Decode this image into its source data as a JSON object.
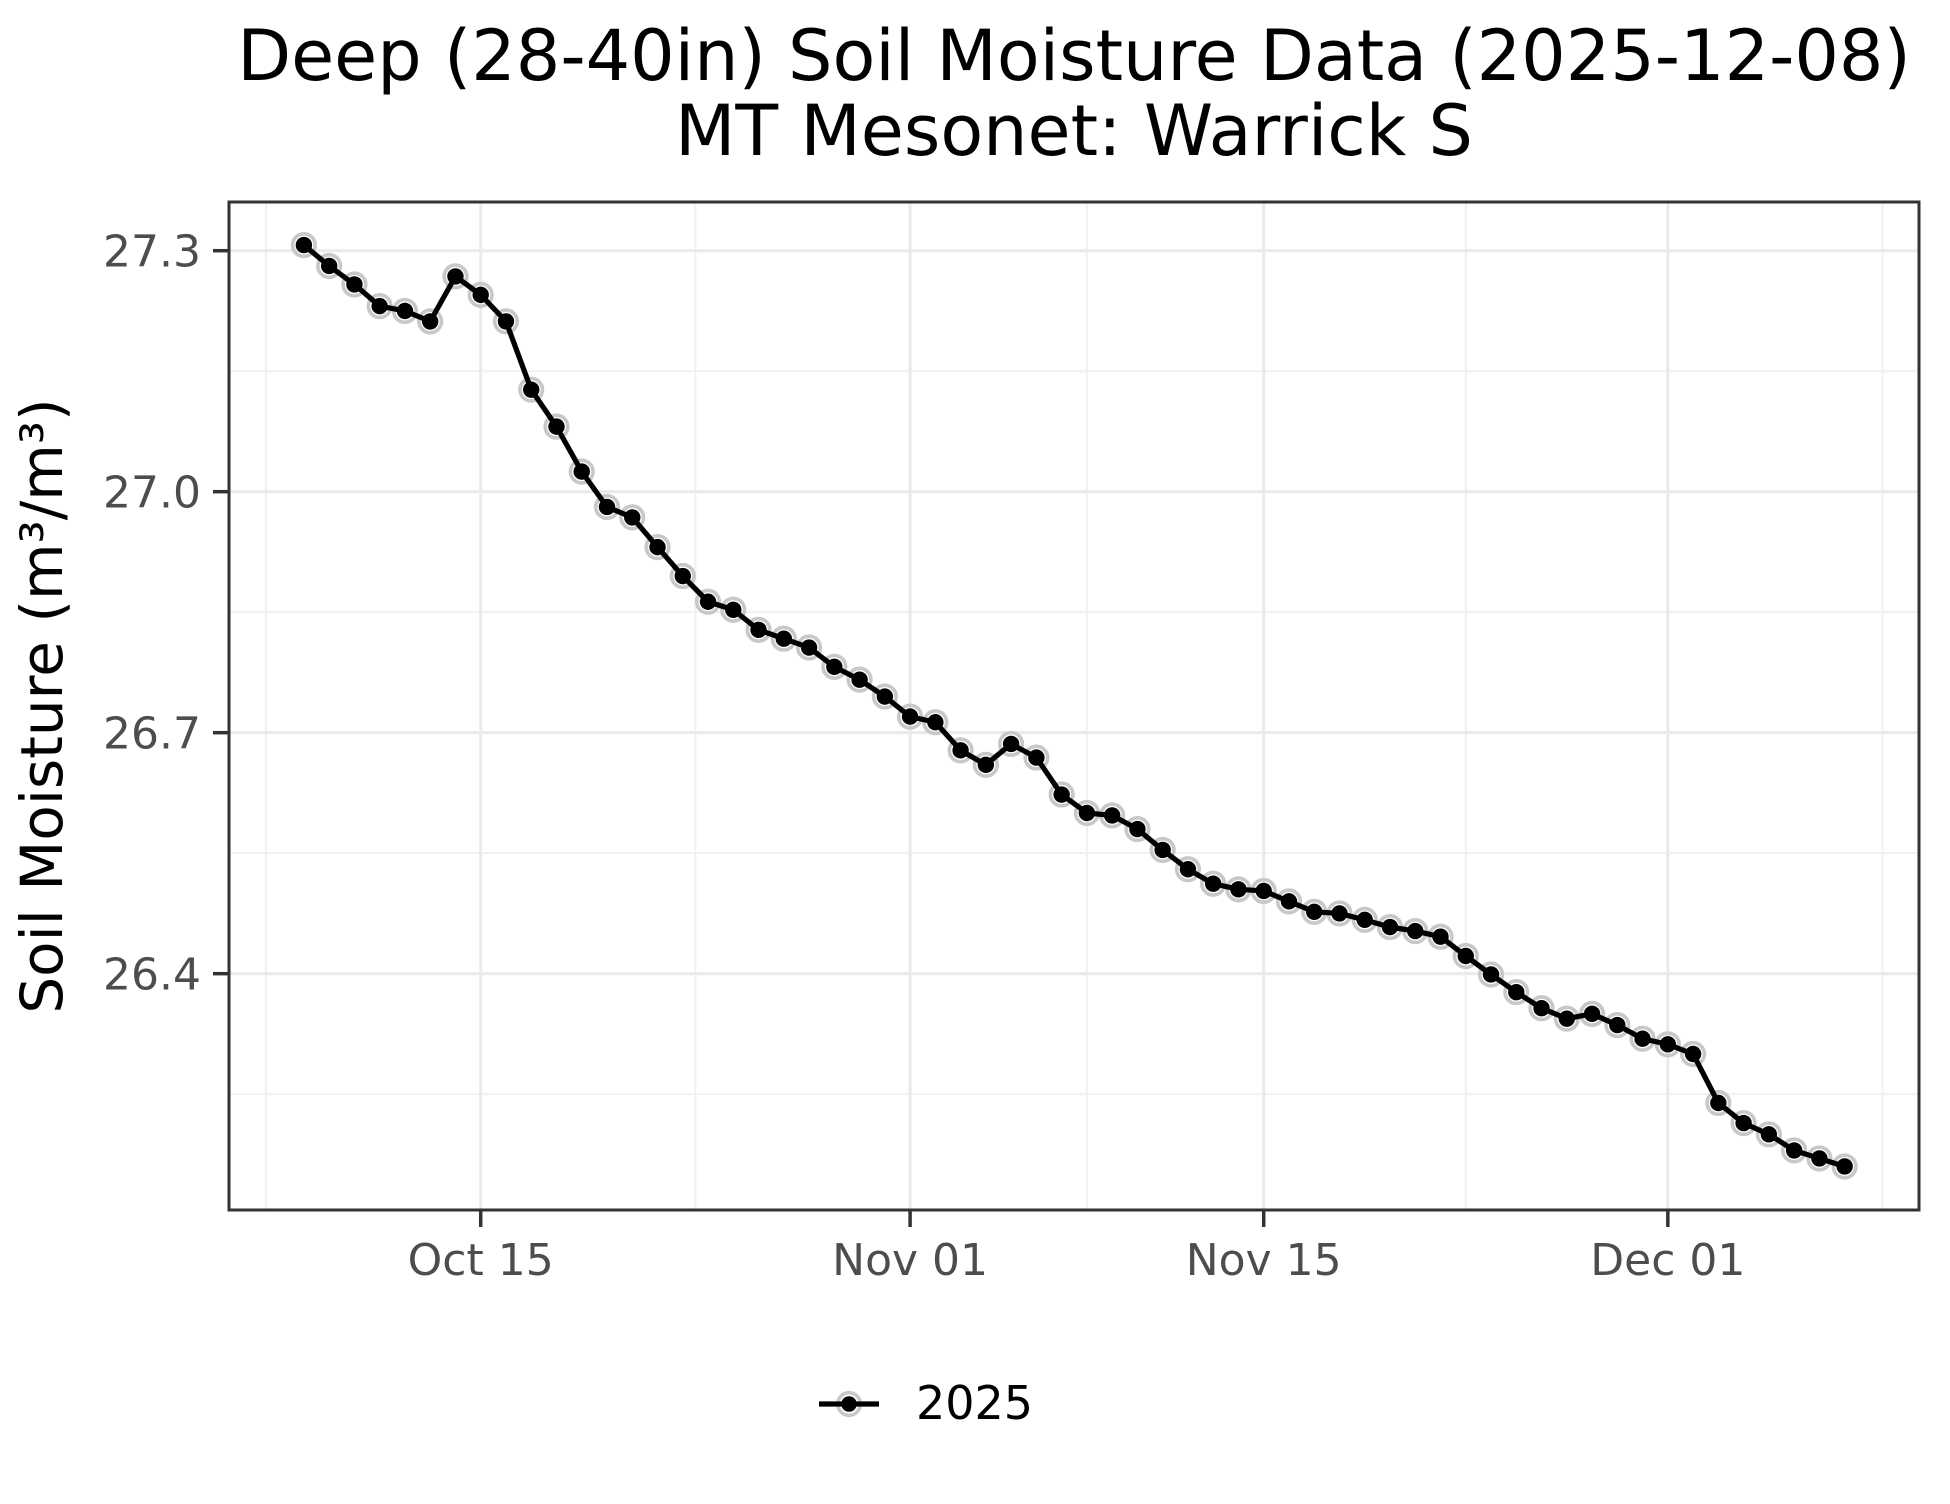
{
  "chart_data": {
    "type": "line",
    "title": "Deep (28-40in) Soil Moisture Data (2025-12-08)",
    "subtitle": "MT Mesonet: Warrick S",
    "ylabel": "Soil Moisture (m³/m³)",
    "xlabel": "",
    "legend": {
      "position": "bottom",
      "entries": [
        "2025"
      ]
    },
    "series": [
      {
        "name": "2025",
        "dates": [
          "2025-10-08",
          "2025-10-09",
          "2025-10-10",
          "2025-10-11",
          "2025-10-12",
          "2025-10-13",
          "2025-10-14",
          "2025-10-15",
          "2025-10-16",
          "2025-10-17",
          "2025-10-18",
          "2025-10-19",
          "2025-10-20",
          "2025-10-21",
          "2025-10-22",
          "2025-10-23",
          "2025-10-24",
          "2025-10-25",
          "2025-10-26",
          "2025-10-27",
          "2025-10-28",
          "2025-10-29",
          "2025-10-30",
          "2025-10-31",
          "2025-11-01",
          "2025-11-02",
          "2025-11-03",
          "2025-11-04",
          "2025-11-05",
          "2025-11-06",
          "2025-11-07",
          "2025-11-08",
          "2025-11-09",
          "2025-11-10",
          "2025-11-11",
          "2025-11-12",
          "2025-11-13",
          "2025-11-14",
          "2025-11-15",
          "2025-11-16",
          "2025-11-17",
          "2025-11-18",
          "2025-11-19",
          "2025-11-20",
          "2025-11-21",
          "2025-11-22",
          "2025-11-23",
          "2025-11-24",
          "2025-11-25",
          "2025-11-26",
          "2025-11-27",
          "2025-11-28",
          "2025-11-29",
          "2025-11-30",
          "2025-12-01",
          "2025-12-02",
          "2025-12-03",
          "2025-12-04",
          "2025-12-05",
          "2025-12-06",
          "2025-12-07",
          "2025-12-08"
        ],
        "values": [
          27.307,
          27.281,
          27.258,
          27.231,
          27.225,
          27.212,
          27.268,
          27.245,
          27.212,
          27.127,
          27.081,
          27.025,
          26.981,
          26.968,
          26.931,
          26.895,
          26.863,
          26.853,
          26.828,
          26.817,
          26.806,
          26.782,
          26.766,
          26.745,
          26.72,
          26.713,
          26.678,
          26.66,
          26.686,
          26.669,
          26.623,
          26.6,
          26.597,
          26.58,
          26.554,
          26.53,
          26.512,
          26.505,
          26.503,
          26.49,
          26.477,
          26.475,
          26.467,
          26.458,
          26.453,
          26.446,
          26.422,
          26.399,
          26.377,
          26.357,
          26.344,
          26.35,
          26.336,
          26.319,
          26.312,
          26.3,
          26.239,
          26.214,
          26.2,
          26.18,
          26.17,
          26.16
        ]
      }
    ],
    "x_major_ticks": [
      {
        "date": "2025-10-15",
        "label": "Oct 15"
      },
      {
        "date": "2025-11-01",
        "label": "Nov 01"
      },
      {
        "date": "2025-11-15",
        "label": "Nov 15"
      },
      {
        "date": "2025-12-01",
        "label": "Dec 01"
      }
    ],
    "x_minor_days": [
      -1.5,
      15.5,
      31,
      46,
      62.5
    ],
    "y_major_ticks": [
      {
        "value": 27.3,
        "label": "27.3"
      },
      {
        "value": 27.0,
        "label": "27.0"
      },
      {
        "value": 26.7,
        "label": "26.7"
      },
      {
        "value": 26.4,
        "label": "26.4"
      }
    ],
    "y_minor_ticks": [
      27.15,
      26.85,
      26.55,
      26.25
    ],
    "ylim": [
      26.103,
      27.364
    ],
    "grid": true,
    "style": {
      "line_color": "#000000",
      "point_color": "#000000",
      "halo_color": "#c8c8c8",
      "grid_major_color": "#eaeaea",
      "grid_minor_color": "#f1f1f1",
      "panel_border_color": "#333333",
      "tick_color": "#333333",
      "axis_text_color": "#4d4d4d",
      "background": "#ffffff"
    }
  }
}
